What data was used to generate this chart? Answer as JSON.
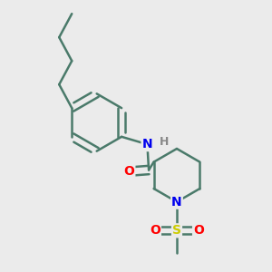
{
  "background_color": "#ebebeb",
  "bond_color": "#4a7a6a",
  "bond_width": 1.8,
  "atom_colors": {
    "N": "#0000ee",
    "O": "#ff0000",
    "S": "#cccc00",
    "H": "#888888"
  },
  "font_size_atom": 10,
  "font_size_H": 9
}
